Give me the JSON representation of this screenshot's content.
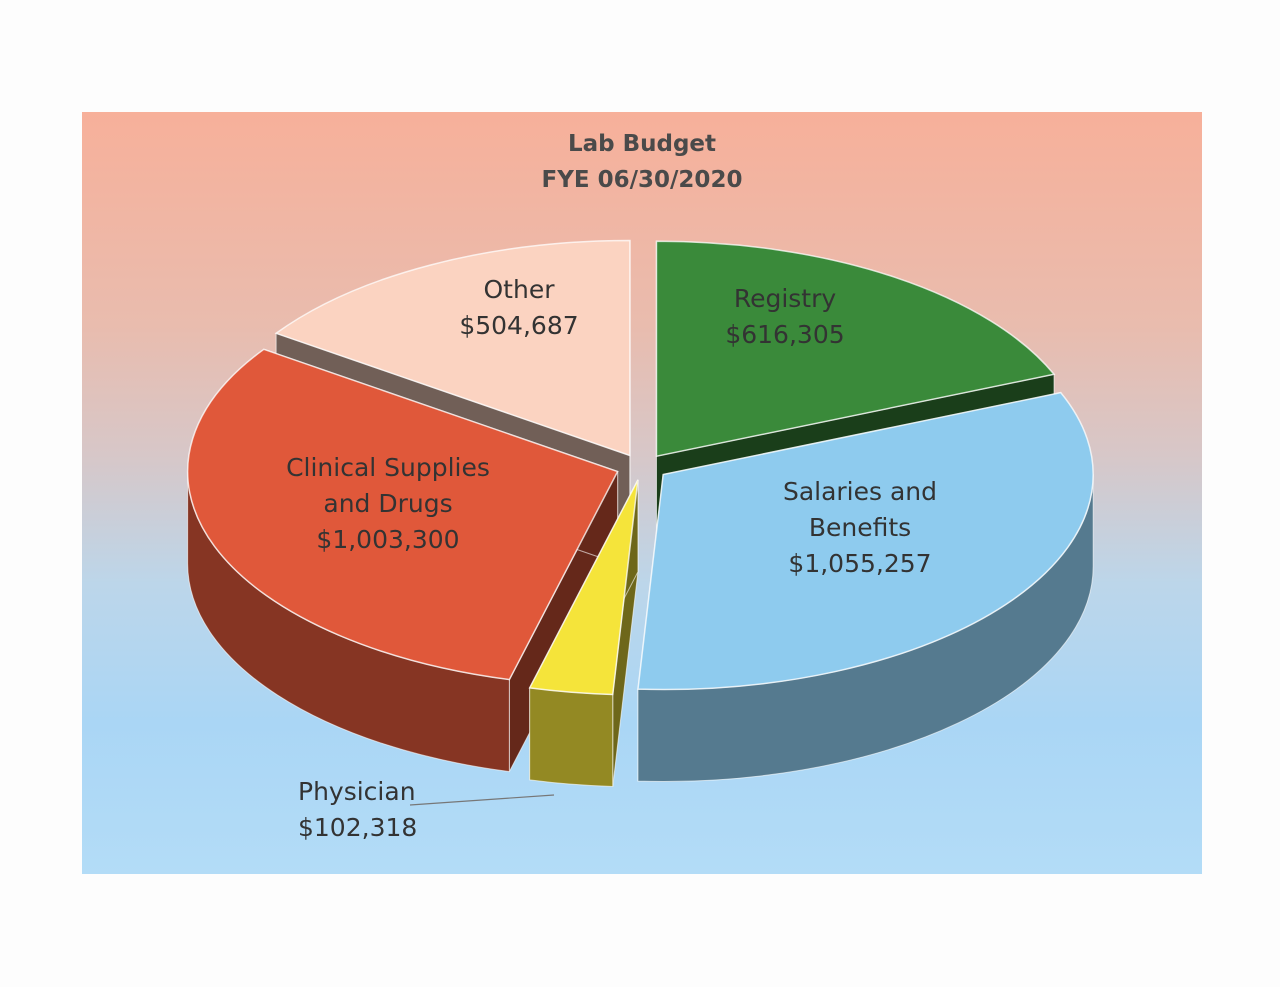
{
  "chart_data": {
    "type": "pie",
    "title": "Lab Budget",
    "subtitle": "FYE 06/30/2020",
    "slices": [
      {
        "name": "Registry",
        "label_lines": [
          "Registry"
        ],
        "value": 616305,
        "value_label": "$616,305",
        "color": "#3a8a3a"
      },
      {
        "name": "Salaries and Benefits",
        "label_lines": [
          "Salaries and",
          "Benefits"
        ],
        "value": 1055257,
        "value_label": "$1,055,257",
        "color": "#8ecbee"
      },
      {
        "name": "Physician",
        "label_lines": [
          "Physician"
        ],
        "value": 102318,
        "value_label": "$102,318",
        "color": "#f5e43a"
      },
      {
        "name": "Clinical Supplies and Drugs",
        "label_lines": [
          "Clinical Supplies",
          "and Drugs"
        ],
        "value": 1003300,
        "value_label": "$1,003,300",
        "color": "#e0583a"
      },
      {
        "name": "Other",
        "label_lines": [
          "Other"
        ],
        "value": 504687,
        "value_label": "$504,687",
        "color": "#fbd3c1"
      }
    ]
  }
}
